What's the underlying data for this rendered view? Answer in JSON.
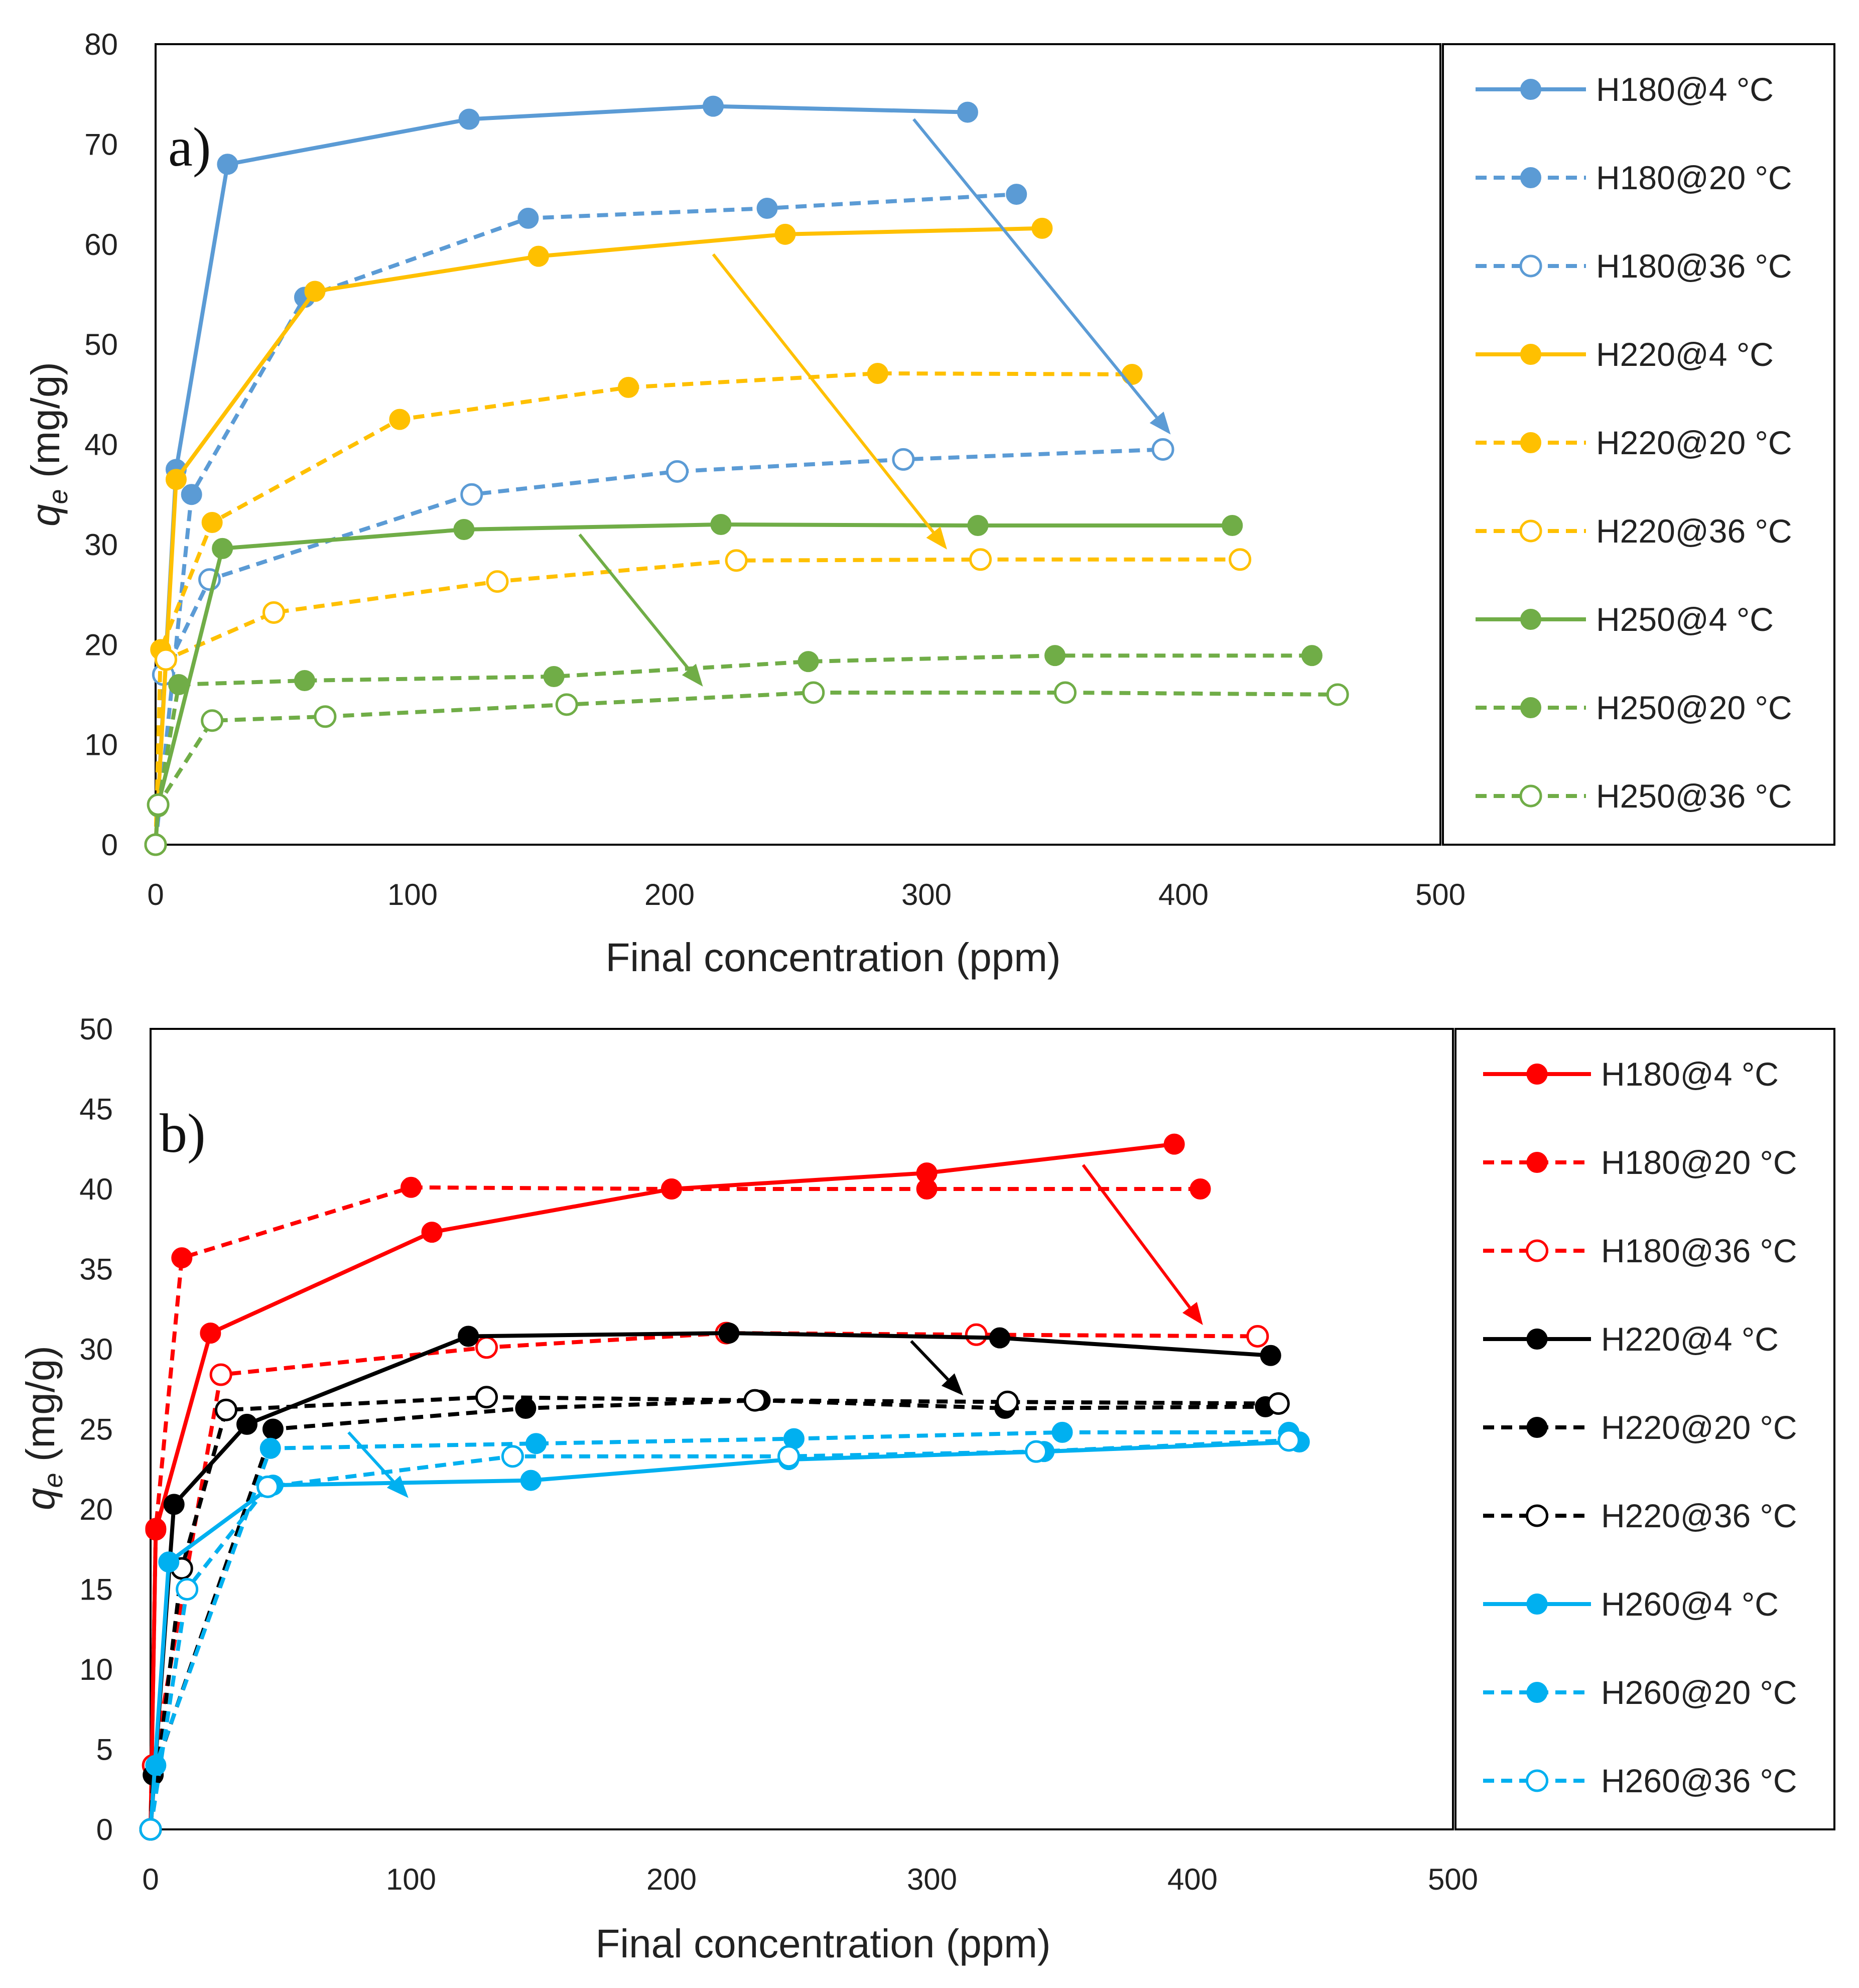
{
  "chart_data": [
    {
      "type": "line",
      "panel_label": "a)",
      "xlabel": "Final concentration (ppm)",
      "ylabel_symbol": "q",
      "ylabel_sub": "e",
      "ylabel_unit": " (mg/g)",
      "xlim": [
        0,
        500
      ],
      "ylim": [
        0,
        80
      ],
      "xticks": [
        0,
        100,
        200,
        300,
        400,
        500
      ],
      "yticks": [
        0,
        10,
        20,
        30,
        40,
        50,
        60,
        70,
        80
      ],
      "grid": false,
      "legend_position": "right",
      "series": [
        {
          "name": "H180@4 °C",
          "color": "#5B9BD5",
          "dash": false,
          "marker": "filled",
          "x": [
            0,
            8,
            28,
            122,
            217,
            316
          ],
          "y": [
            0,
            37.5,
            68,
            72.5,
            73.8,
            73.2
          ]
        },
        {
          "name": "H180@20 °C",
          "color": "#5B9BD5",
          "dash": true,
          "marker": "filled",
          "x": [
            0,
            14,
            58,
            145,
            238,
            335
          ],
          "y": [
            0,
            35,
            54.7,
            62.6,
            63.6,
            65
          ]
        },
        {
          "name": "H180@36 °C",
          "color": "#5B9BD5",
          "dash": true,
          "marker": "open",
          "x": [
            0,
            3,
            21,
            123,
            203,
            291,
            392
          ],
          "y": [
            0,
            17,
            26.5,
            35,
            37.3,
            38.5,
            39.5
          ]
        },
        {
          "name": "H220@4 °C",
          "color": "#FFC000",
          "dash": false,
          "marker": "filled",
          "x": [
            0,
            8,
            62,
            149,
            245,
            345
          ],
          "y": [
            0,
            36.5,
            55.3,
            58.8,
            61,
            61.6
          ]
        },
        {
          "name": "H220@20 °C",
          "color": "#FFC000",
          "dash": true,
          "marker": "filled",
          "x": [
            0,
            2,
            22,
            95,
            184,
            281,
            380
          ],
          "y": [
            0,
            19.5,
            32.2,
            42.5,
            45.7,
            47.1,
            47
          ]
        },
        {
          "name": "H220@36 °C",
          "color": "#FFC000",
          "dash": true,
          "marker": "open",
          "x": [
            0,
            4,
            46,
            133,
            226,
            321,
            422
          ],
          "y": [
            0,
            18.5,
            23.2,
            26.3,
            28.4,
            28.5,
            28.5
          ]
        },
        {
          "name": "H250@4 °C",
          "color": "#70AD47",
          "dash": false,
          "marker": "filled",
          "x": [
            0,
            1,
            26,
            120,
            220,
            320,
            419
          ],
          "y": [
            0,
            4,
            29.6,
            31.5,
            32,
            31.9,
            31.9
          ]
        },
        {
          "name": "H250@20 °C",
          "color": "#70AD47",
          "dash": true,
          "marker": "filled",
          "x": [
            0,
            1,
            9,
            58,
            155,
            254,
            350,
            450
          ],
          "y": [
            0,
            3.8,
            16,
            16.4,
            16.8,
            18.3,
            18.9,
            18.9
          ]
        },
        {
          "name": "H250@36 °C",
          "color": "#70AD47",
          "dash": true,
          "marker": "open",
          "x": [
            0,
            1,
            22,
            66,
            160,
            256,
            354,
            460
          ],
          "y": [
            0,
            4,
            12.4,
            12.8,
            14,
            15.2,
            15.2,
            15
          ]
        }
      ],
      "arrows": [
        {
          "color": "#5B9BD5",
          "from": [
            295,
            72.5
          ],
          "to": [
            395,
            41
          ]
        },
        {
          "color": "#FFC000",
          "from": [
            217,
            59
          ],
          "to": [
            308,
            29.5
          ]
        },
        {
          "color": "#70AD47",
          "from": [
            165,
            31
          ],
          "to": [
            213,
            15.8
          ]
        }
      ]
    },
    {
      "type": "line",
      "panel_label": "b)",
      "xlabel": "Final concentration (ppm)",
      "ylabel_symbol": "q",
      "ylabel_sub": "e",
      "ylabel_unit": " (mg/g)",
      "xlim": [
        0,
        500
      ],
      "ylim": [
        0,
        50
      ],
      "xticks": [
        0,
        100,
        200,
        300,
        400,
        500
      ],
      "yticks": [
        0,
        5,
        10,
        15,
        20,
        25,
        30,
        35,
        40,
        45,
        50
      ],
      "grid": false,
      "legend_position": "right",
      "series": [
        {
          "name": "H180@4 °C",
          "color": "#FF0000",
          "dash": false,
          "marker": "filled",
          "x": [
            0,
            2,
            23,
            108,
            200,
            298,
            393
          ],
          "y": [
            0,
            18.7,
            31,
            37.3,
            40,
            41,
            42.8
          ]
        },
        {
          "name": "H180@20 °C",
          "color": "#FF0000",
          "dash": true,
          "marker": "filled",
          "x": [
            0,
            2,
            12,
            100,
            200,
            298,
            403
          ],
          "y": [
            0,
            18.8,
            35.7,
            40.1,
            40,
            40,
            40
          ]
        },
        {
          "name": "H180@36 °C",
          "color": "#FF0000",
          "dash": true,
          "marker": "open",
          "x": [
            0,
            1,
            27,
            129,
            221,
            317,
            425
          ],
          "y": [
            0,
            4,
            28.4,
            30.1,
            31,
            30.9,
            30.8
          ]
        },
        {
          "name": "H220@4 °C",
          "color": "#000000",
          "dash": false,
          "marker": "filled",
          "x": [
            0,
            9,
            37,
            122,
            222,
            326,
            430
          ],
          "y": [
            0,
            20.3,
            25.3,
            30.8,
            31,
            30.7,
            29.6
          ]
        },
        {
          "name": "H220@20 °C",
          "color": "#000000",
          "dash": true,
          "marker": "filled",
          "x": [
            0,
            1,
            47,
            144,
            234,
            328,
            428
          ],
          "y": [
            0,
            3.4,
            25,
            26.3,
            26.8,
            26.3,
            26.4
          ]
        },
        {
          "name": "H220@36 °C",
          "color": "#000000",
          "dash": true,
          "marker": "open",
          "x": [
            0,
            12,
            29,
            129,
            232,
            329,
            433
          ],
          "y": [
            0,
            16.3,
            26.2,
            27,
            26.8,
            26.7,
            26.6
          ]
        },
        {
          "name": "H260@4 °C",
          "color": "#00B0F0",
          "dash": false,
          "marker": "filled",
          "x": [
            0,
            7,
            47,
            146,
            245,
            343,
            441
          ],
          "y": [
            0,
            16.7,
            21.5,
            21.8,
            23.1,
            23.6,
            24.2
          ]
        },
        {
          "name": "H260@20 °C",
          "color": "#00B0F0",
          "dash": true,
          "marker": "filled",
          "x": [
            0,
            2,
            46,
            148,
            247,
            350,
            437
          ],
          "y": [
            0,
            4,
            23.8,
            24.1,
            24.4,
            24.8,
            24.8
          ]
        },
        {
          "name": "H260@36 °C",
          "color": "#00B0F0",
          "dash": true,
          "marker": "open",
          "x": [
            0,
            14,
            45,
            139,
            245,
            340,
            437
          ],
          "y": [
            0,
            15,
            21.4,
            23.3,
            23.3,
            23.6,
            24.3
          ]
        }
      ],
      "arrows": [
        {
          "color": "#FF0000",
          "from": [
            358,
            41.5
          ],
          "to": [
            404,
            31.5
          ]
        },
        {
          "color": "#000000",
          "from": [
            292,
            30.5
          ],
          "to": [
            312,
            27.1
          ]
        },
        {
          "color": "#00B0F0",
          "from": [
            76,
            24.8
          ],
          "to": [
            99,
            20.7
          ]
        }
      ]
    }
  ]
}
